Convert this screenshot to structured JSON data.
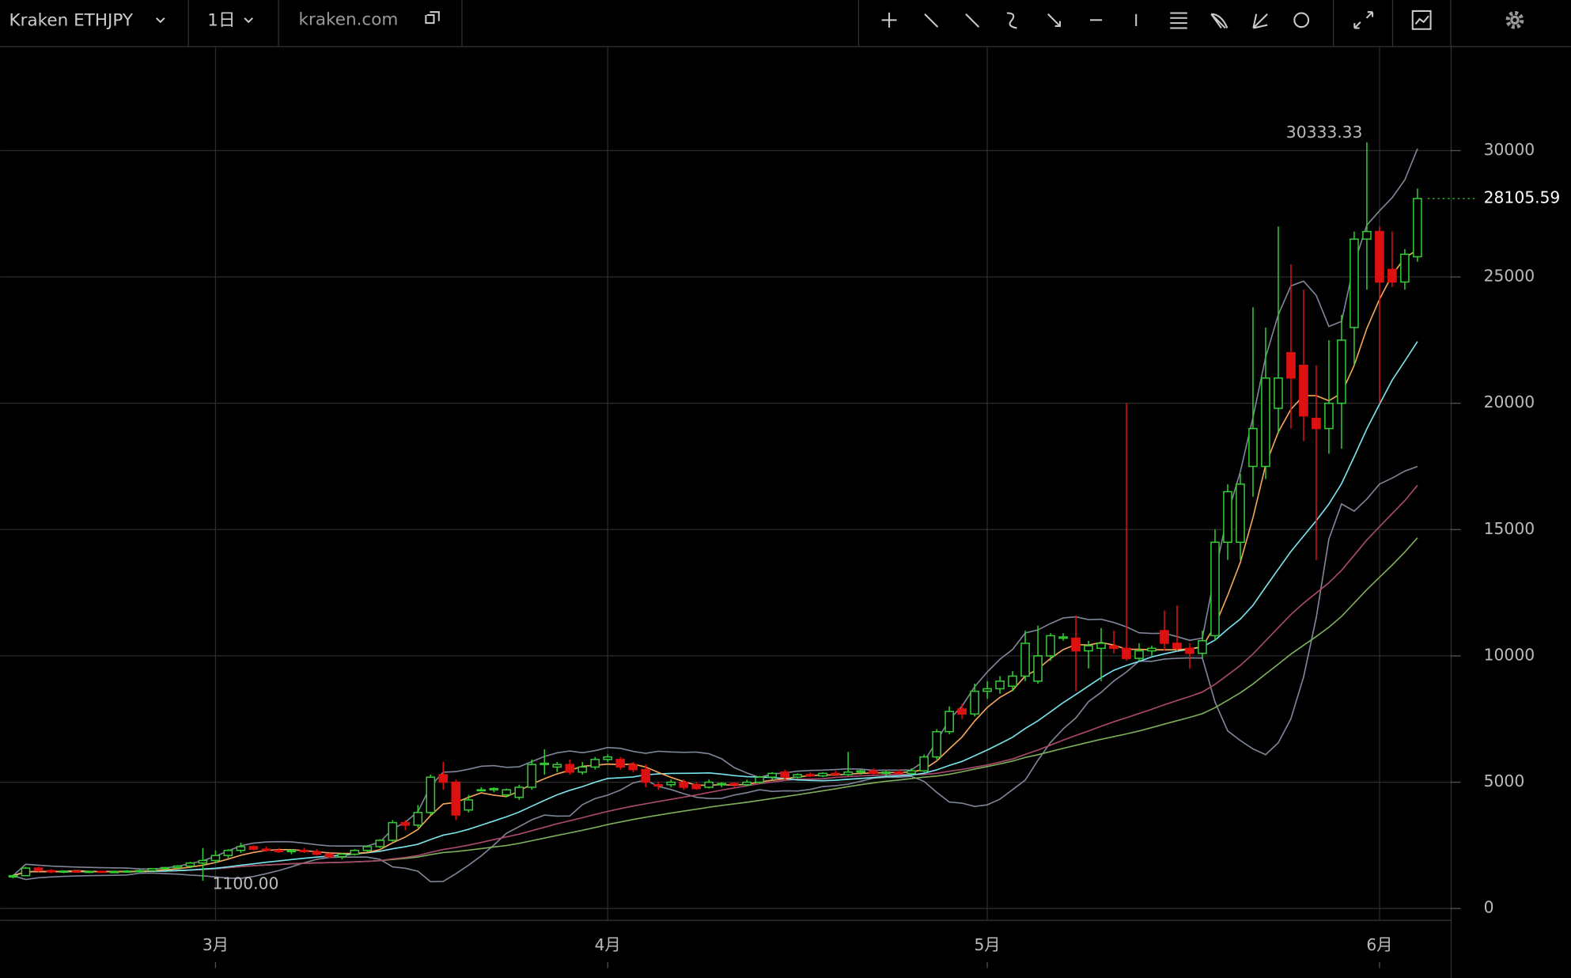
{
  "toolbar": {
    "symbol": "Kraken ETHJPY",
    "interval": "1日",
    "source": "kraken.com"
  },
  "chart_data": {
    "type": "candlestick",
    "categories": [
      null,
      null,
      null,
      null,
      null,
      null,
      null,
      null,
      null,
      null,
      null,
      null,
      null,
      null,
      null,
      null,
      "3月",
      null,
      null,
      null,
      null,
      null,
      null,
      null,
      null,
      null,
      null,
      null,
      null,
      null,
      null,
      null,
      null,
      null,
      null,
      null,
      null,
      null,
      null,
      null,
      null,
      null,
      null,
      null,
      null,
      null,
      null,
      "4月",
      null,
      null,
      null,
      null,
      null,
      null,
      null,
      null,
      null,
      null,
      null,
      null,
      null,
      null,
      null,
      null,
      null,
      null,
      null,
      null,
      null,
      null,
      null,
      null,
      null,
      null,
      null,
      null,
      null,
      "5月",
      null,
      null,
      null,
      null,
      null,
      null,
      null,
      null,
      null,
      null,
      null,
      null,
      null,
      null,
      null,
      null,
      null,
      null,
      null,
      null,
      null,
      null,
      null,
      null,
      null,
      null,
      null,
      null,
      null,
      null,
      "6月",
      null,
      null,
      null
    ],
    "ohlc": [
      [
        1250,
        1350,
        1200,
        1300
      ],
      [
        1300,
        1650,
        1280,
        1600
      ],
      [
        1600,
        1650,
        1450,
        1500
      ],
      [
        1500,
        1550,
        1400,
        1450
      ],
      [
        1450,
        1500,
        1400,
        1480
      ],
      [
        1480,
        1520,
        1420,
        1450
      ],
      [
        1450,
        1500,
        1400,
        1470
      ],
      [
        1470,
        1500,
        1420,
        1450
      ],
      [
        1450,
        1500,
        1400,
        1460
      ],
      [
        1460,
        1520,
        1420,
        1480
      ],
      [
        1480,
        1550,
        1450,
        1500
      ],
      [
        1500,
        1600,
        1480,
        1580
      ],
      [
        1580,
        1650,
        1520,
        1620
      ],
      [
        1620,
        1720,
        1580,
        1680
      ],
      [
        1680,
        1850,
        1600,
        1800
      ],
      [
        1800,
        2400,
        1100,
        1900
      ],
      [
        1900,
        2300,
        1800,
        2100
      ],
      [
        2100,
        2350,
        2000,
        2300
      ],
      [
        2300,
        2600,
        2200,
        2450
      ],
      [
        2450,
        2500,
        2300,
        2350
      ],
      [
        2350,
        2450,
        2250,
        2300
      ],
      [
        2300,
        2400,
        2200,
        2250
      ],
      [
        2250,
        2350,
        2150,
        2300
      ],
      [
        2300,
        2400,
        2200,
        2250
      ],
      [
        2250,
        2350,
        2100,
        2150
      ],
      [
        2150,
        2200,
        2000,
        2050
      ],
      [
        2050,
        2200,
        1950,
        2150
      ],
      [
        2150,
        2350,
        2100,
        2300
      ],
      [
        2300,
        2500,
        2250,
        2450
      ],
      [
        2450,
        2750,
        2400,
        2700
      ],
      [
        2700,
        3500,
        2650,
        3400
      ],
      [
        3400,
        3500,
        3100,
        3300
      ],
      [
        3300,
        4100,
        3200,
        3800
      ],
      [
        3800,
        5300,
        3700,
        5200
      ],
      [
        5300,
        5800,
        4700,
        5000
      ],
      [
        5000,
        5100,
        3500,
        3700
      ],
      [
        3900,
        4500,
        3800,
        4300
      ],
      [
        4700,
        4800,
        4650,
        4700
      ],
      [
        4700,
        4800,
        4600,
        4750
      ],
      [
        4500,
        4750,
        4400,
        4700
      ],
      [
        4400,
        4900,
        4300,
        4800
      ],
      [
        4800,
        5900,
        4700,
        5700
      ],
      [
        5700,
        6300,
        5300,
        5750
      ],
      [
        5600,
        5800,
        5400,
        5700
      ],
      [
        5700,
        5900,
        5300,
        5400
      ],
      [
        5400,
        5800,
        5300,
        5600
      ],
      [
        5600,
        6000,
        5500,
        5900
      ],
      [
        5900,
        6100,
        5800,
        6000
      ],
      [
        5900,
        6000,
        5500,
        5600
      ],
      [
        5700,
        5800,
        5400,
        5500
      ],
      [
        5500,
        5700,
        4800,
        5000
      ],
      [
        4900,
        5000,
        4700,
        4850
      ],
      [
        4900,
        5100,
        4800,
        5000
      ],
      [
        5000,
        5100,
        4700,
        4800
      ],
      [
        4900,
        5000,
        4700,
        4750
      ],
      [
        4800,
        5100,
        4750,
        5000
      ],
      [
        4900,
        5000,
        4800,
        4950
      ],
      [
        4950,
        5000,
        4800,
        4900
      ],
      [
        4900,
        5100,
        4850,
        5000
      ],
      [
        5000,
        5250,
        4950,
        5200
      ],
      [
        5200,
        5400,
        5100,
        5350
      ],
      [
        5400,
        5500,
        5100,
        5200
      ],
      [
        5200,
        5350,
        5150,
        5300
      ],
      [
        5300,
        5400,
        5200,
        5250
      ],
      [
        5250,
        5400,
        5200,
        5350
      ],
      [
        5350,
        5450,
        5250,
        5300
      ],
      [
        5300,
        6200,
        5250,
        5400
      ],
      [
        5400,
        5500,
        5300,
        5450
      ],
      [
        5450,
        5550,
        5300,
        5350
      ],
      [
        5350,
        5450,
        5250,
        5400
      ],
      [
        5400,
        5500,
        5300,
        5350
      ],
      [
        5350,
        5550,
        5300,
        5450
      ],
      [
        5450,
        6100,
        5400,
        6000
      ],
      [
        6000,
        7100,
        5900,
        7000
      ],
      [
        7000,
        8000,
        6900,
        7800
      ],
      [
        7900,
        8100,
        7500,
        7700
      ],
      [
        7700,
        8900,
        7600,
        8600
      ],
      [
        8600,
        9000,
        8300,
        8700
      ],
      [
        8700,
        9200,
        8500,
        9000
      ],
      [
        8800,
        9400,
        8600,
        9200
      ],
      [
        9200,
        11000,
        9000,
        10500
      ],
      [
        9000,
        11200,
        8900,
        10000
      ],
      [
        10000,
        10900,
        9800,
        10800
      ],
      [
        10700,
        10900,
        10600,
        10750
      ],
      [
        10700,
        11600,
        8600,
        10200
      ],
      [
        10200,
        10600,
        9500,
        10400
      ],
      [
        10300,
        11100,
        9000,
        10500
      ],
      [
        10400,
        11000,
        10100,
        10300
      ],
      [
        10300,
        20000,
        9800,
        9900
      ],
      [
        9900,
        10500,
        9800,
        10200
      ],
      [
        10200,
        10400,
        10000,
        10300
      ],
      [
        11000,
        11800,
        10200,
        10500
      ],
      [
        10500,
        12000,
        10200,
        10300
      ],
      [
        10300,
        10500,
        9500,
        10100
      ],
      [
        10100,
        11000,
        9900,
        10600
      ],
      [
        10800,
        15000,
        10600,
        14500
      ],
      [
        14500,
        16800,
        13800,
        16500
      ],
      [
        14500,
        17200,
        13800,
        16800
      ],
      [
        17500,
        23800,
        16300,
        19000
      ],
      [
        17500,
        23000,
        17000,
        21000
      ],
      [
        19800,
        27000,
        18800,
        21000
      ],
      [
        22000,
        25500,
        19000,
        21000
      ],
      [
        21500,
        24500,
        18500,
        19500
      ],
      [
        19400,
        21500,
        13800,
        19000
      ],
      [
        19000,
        22500,
        18000,
        20000
      ],
      [
        20000,
        23500,
        18200,
        22500
      ],
      [
        23000,
        26800,
        21500,
        26500
      ],
      [
        26500,
        30333.33,
        24500,
        26800
      ],
      [
        26800,
        27000,
        20000,
        24800
      ],
      [
        25300,
        26800,
        24600,
        24800
      ],
      [
        24800,
        26100,
        24500,
        25900
      ],
      [
        25800,
        28500,
        25600,
        28105.59
      ]
    ],
    "ylim": [
      -450,
      34100
    ],
    "yticks": [
      0,
      5000,
      10000,
      15000,
      20000,
      25000,
      30000
    ],
    "up_color": "#33cc33",
    "down_color": "#dd1111",
    "grid": true,
    "high_label": {
      "value": 30333.33,
      "label": "30333.33"
    },
    "low_label": {
      "value": 1100,
      "label": "1100.00"
    },
    "last_label": {
      "value": 28105.59,
      "label": "28105.59"
    }
  }
}
